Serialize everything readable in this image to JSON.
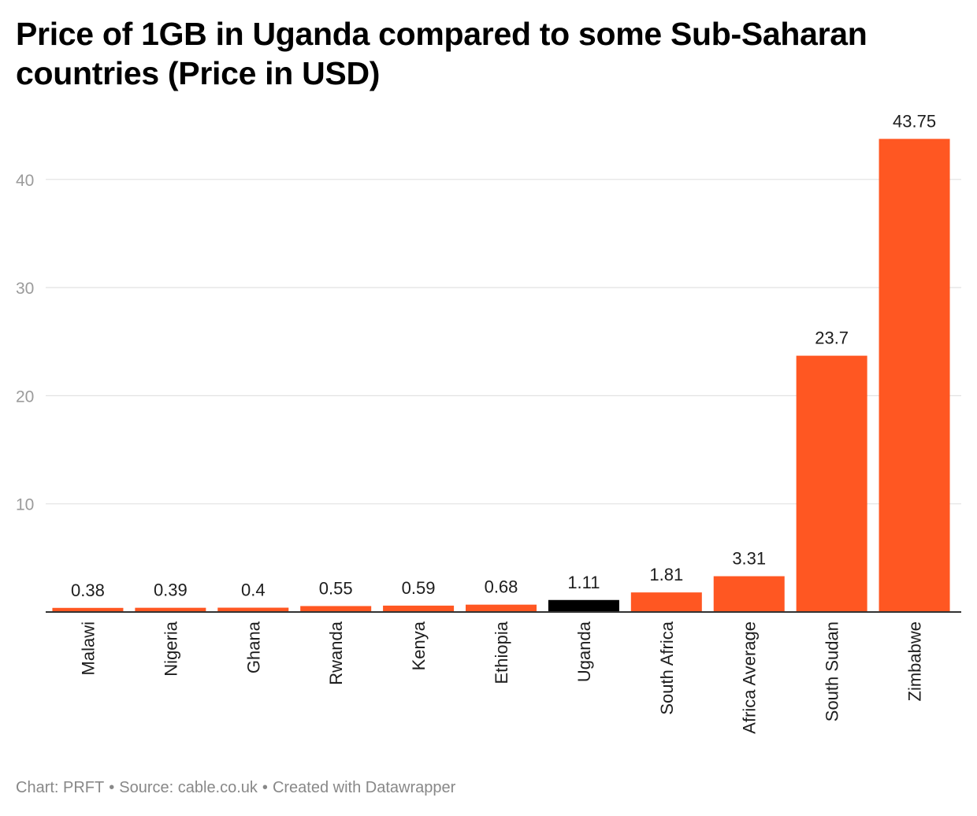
{
  "chart_data": {
    "type": "bar",
    "title": "Price of 1GB in Uganda compared to some Sub-Saharan countries (Price in USD)",
    "xlabel": "",
    "ylabel": "",
    "ylim": [
      0,
      45
    ],
    "yticks": [
      10,
      20,
      30,
      40
    ],
    "grid": true,
    "categories": [
      "Malawi",
      "Nigeria",
      "Ghana",
      "Rwanda",
      "Kenya",
      "Ethiopia",
      "Uganda",
      "South Africa",
      "Africa Average",
      "South Sudan",
      "Zimbabwe"
    ],
    "values": [
      0.38,
      0.39,
      0.4,
      0.55,
      0.59,
      0.68,
      1.11,
      1.81,
      3.31,
      23.7,
      43.75
    ],
    "value_labels": [
      "0.38",
      "0.39",
      "0.4",
      "0.55",
      "0.59",
      "0.68",
      "1.11",
      "1.81",
      "3.31",
      "23.7",
      "43.75"
    ],
    "highlight_category": "Uganda"
  },
  "colors": {
    "bar": "#ff5722",
    "highlight": "#000000",
    "grid": "#e2e2e2",
    "axis": "#333333",
    "tick_label": "#9b9b9b",
    "value_label": "#1d1d1d"
  },
  "footer": {
    "chart_credit": "Chart: PRFT",
    "source": "Source: cable.co.uk",
    "tool": "Created with Datawrapper",
    "separator": "•"
  }
}
